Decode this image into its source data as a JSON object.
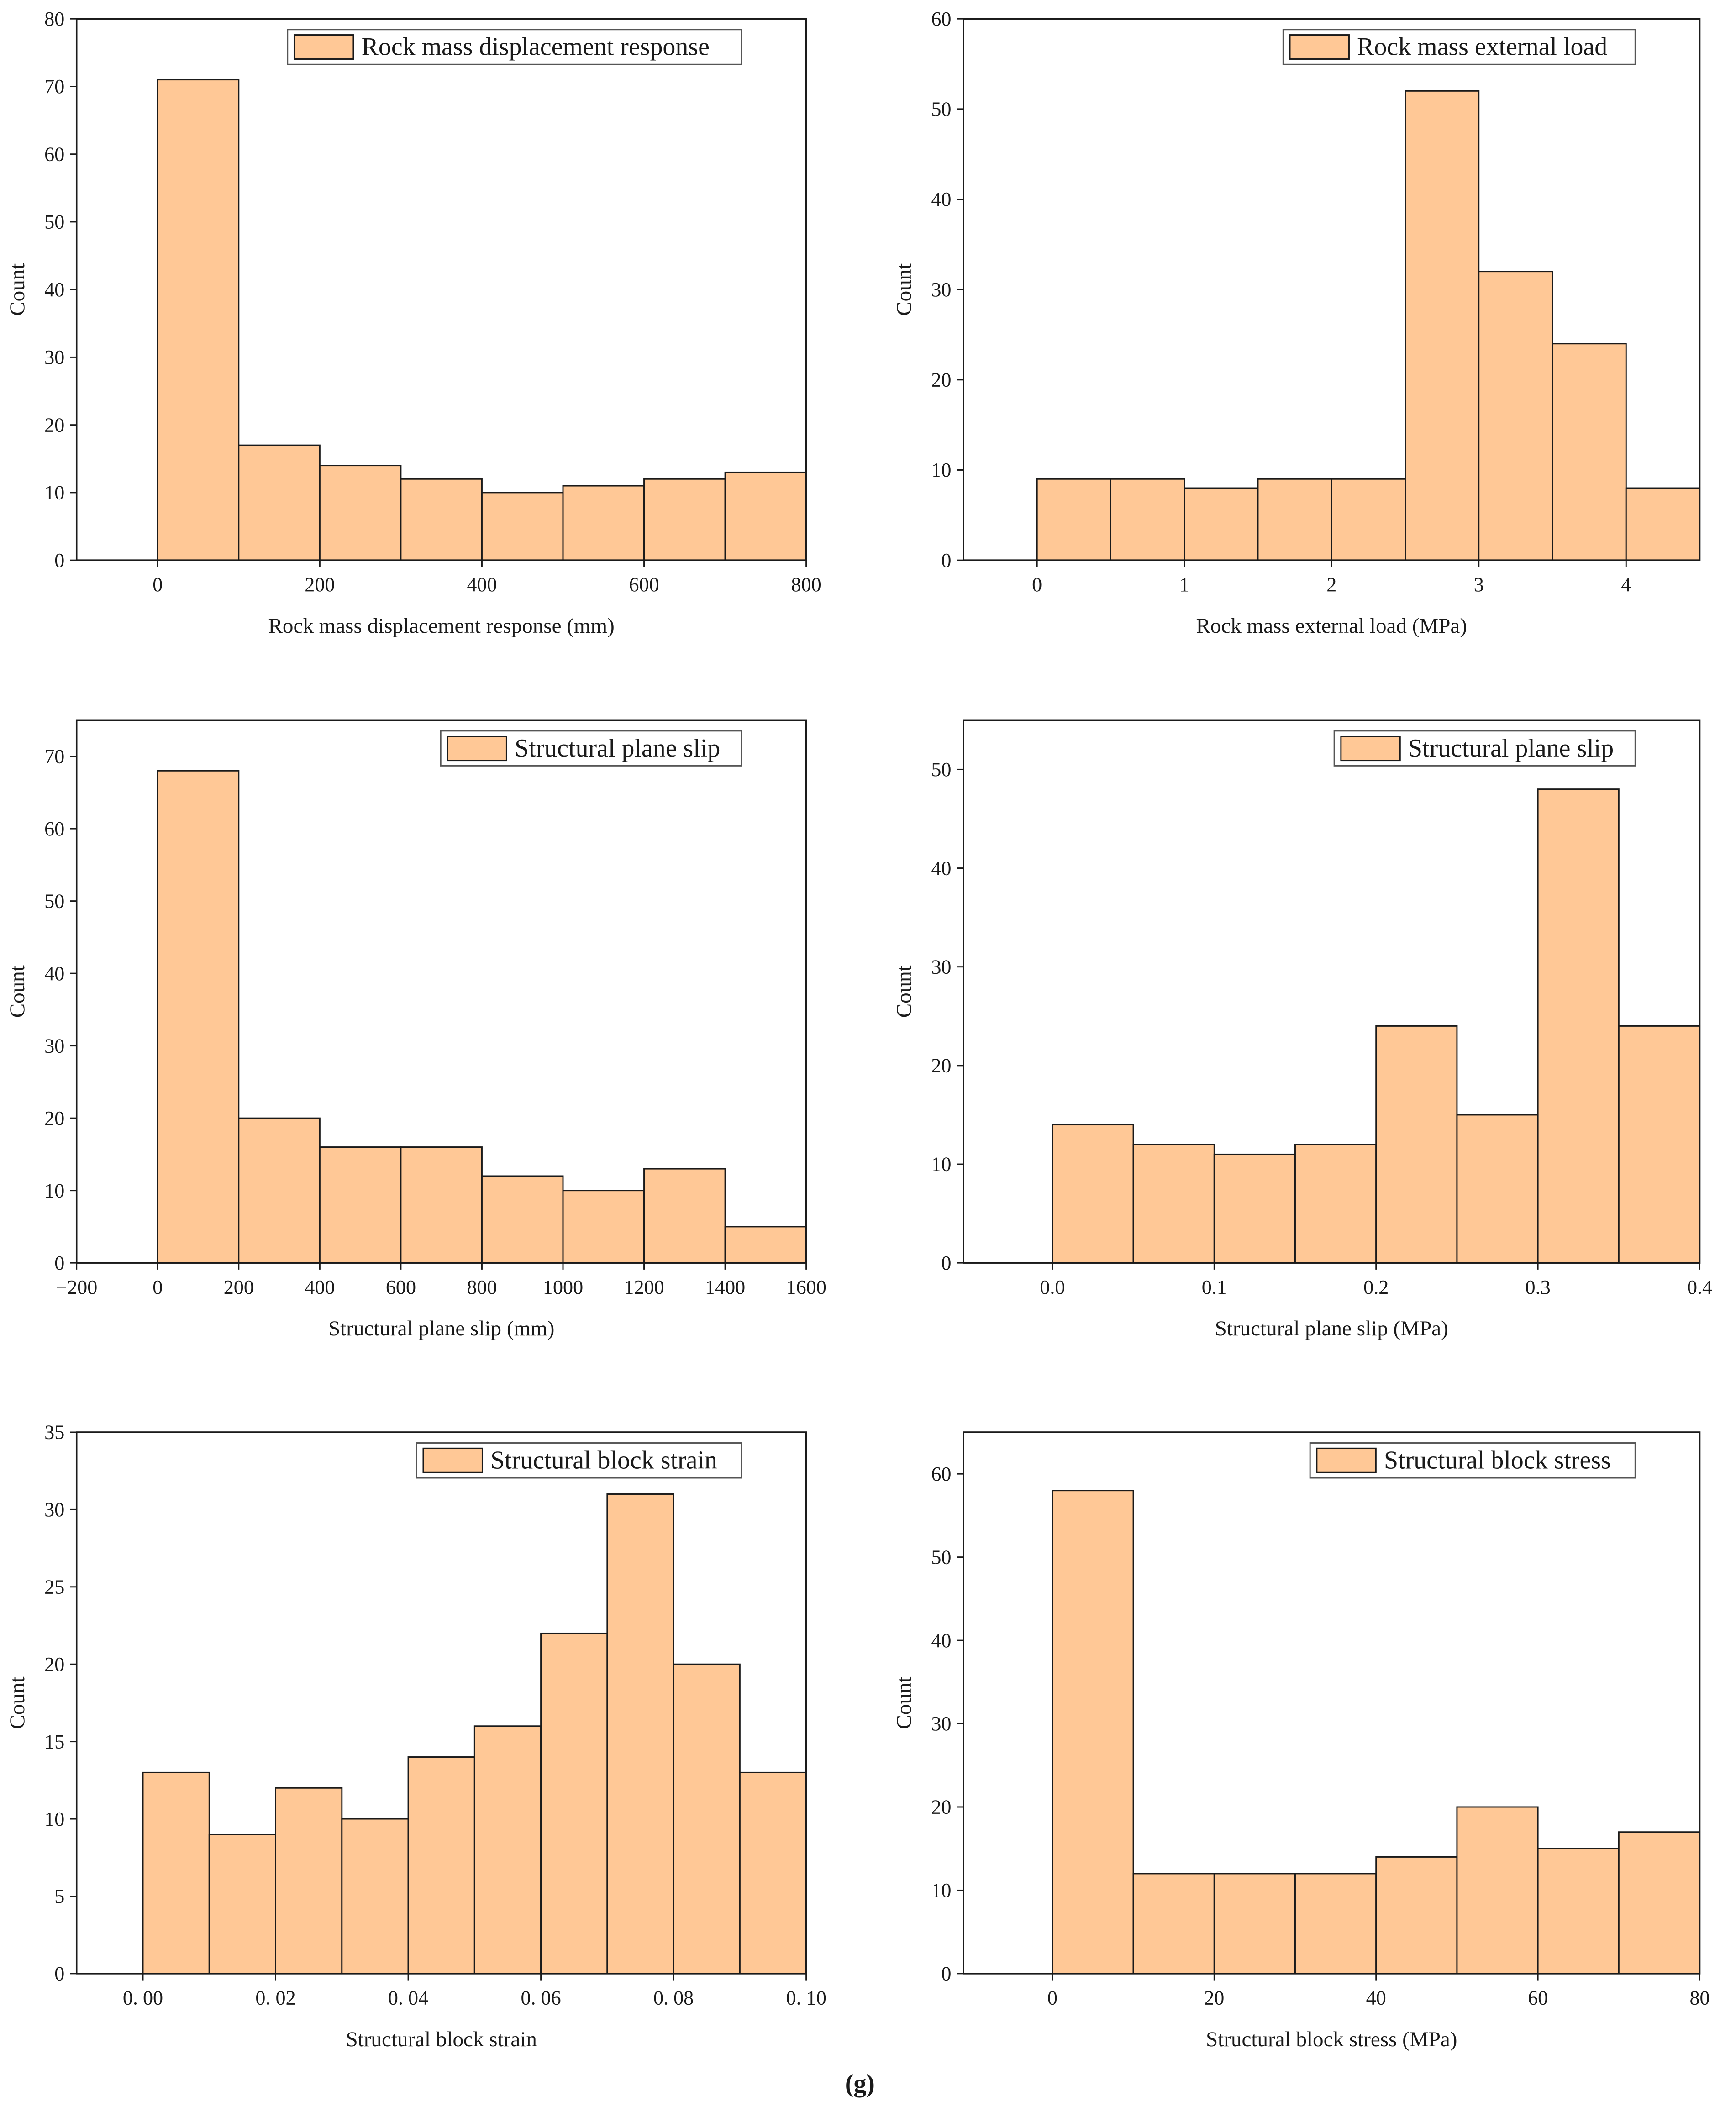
{
  "figure_label": "(g)",
  "chart_data": [
    {
      "type": "bar",
      "title": "",
      "legend": "Rock mass displacement response",
      "xlabel": "Rock mass displacement response (mm)",
      "ylabel": "Count",
      "xlim": [
        -100,
        800
      ],
      "ylim": [
        0,
        80
      ],
      "xticks": [
        0,
        200,
        400,
        600,
        800
      ],
      "xtick_labels": [
        "0",
        "200",
        "400",
        "600",
        "800"
      ],
      "yticks": [
        0,
        10,
        20,
        30,
        40,
        50,
        60,
        70,
        80
      ],
      "ytick_labels": [
        "0",
        "10",
        "20",
        "30",
        "40",
        "50",
        "60",
        "70",
        "80"
      ],
      "bin_edges": [
        0,
        100,
        200,
        300,
        400,
        500,
        600,
        700,
        800
      ],
      "values": [
        71,
        17,
        14,
        12,
        10,
        11,
        12,
        13
      ],
      "bar_color": "#ffc896",
      "legend_position": "top-right"
    },
    {
      "type": "bar",
      "title": "",
      "legend": "Rock mass external load",
      "xlabel": "Rock mass external load (MPa)",
      "ylabel": "Count",
      "xlim": [
        -0.5,
        4.5
      ],
      "ylim": [
        0,
        60
      ],
      "xticks": [
        0,
        1,
        2,
        3,
        4
      ],
      "xtick_labels": [
        "0",
        "1",
        "2",
        "3",
        "4"
      ],
      "yticks": [
        0,
        10,
        20,
        30,
        40,
        50,
        60
      ],
      "ytick_labels": [
        "0",
        "10",
        "20",
        "30",
        "40",
        "50",
        "60"
      ],
      "bin_edges": [
        0,
        0.5,
        1,
        1.5,
        2,
        2.5,
        3,
        3.5,
        4,
        4.5
      ],
      "values": [
        9,
        9,
        8,
        9,
        9,
        52,
        32,
        24,
        8
      ],
      "bar_color": "#ffc896",
      "legend_position": "top-right"
    },
    {
      "type": "bar",
      "title": "",
      "legend": "Structural plane slip",
      "xlabel": "Structural plane slip (mm)",
      "ylabel": "Count",
      "xlim": [
        -200,
        1600
      ],
      "ylim": [
        0,
        75
      ],
      "xticks": [
        -200,
        0,
        200,
        400,
        600,
        800,
        1000,
        1200,
        1400,
        1600
      ],
      "xtick_labels": [
        "−200",
        "0",
        "200",
        "400",
        "600",
        "800",
        "1000",
        "1200",
        "1400",
        "1600"
      ],
      "yticks": [
        0,
        10,
        20,
        30,
        40,
        50,
        60,
        70
      ],
      "ytick_labels": [
        "0",
        "10",
        "20",
        "30",
        "40",
        "50",
        "60",
        "70"
      ],
      "bin_edges": [
        0,
        200,
        400,
        600,
        800,
        1000,
        1200,
        1400,
        1600
      ],
      "values": [
        68,
        20,
        16,
        16,
        12,
        10,
        13,
        5
      ],
      "bar_color": "#ffc896",
      "legend_position": "top-right"
    },
    {
      "type": "bar",
      "title": "",
      "legend": "Structural plane slip",
      "xlabel": "Structural plane slip (MPa)",
      "ylabel": "Count",
      "xlim": [
        -0.055,
        0.4
      ],
      "ylim": [
        0,
        55
      ],
      "xticks": [
        0.0,
        0.1,
        0.2,
        0.3,
        0.4
      ],
      "xtick_labels": [
        "0.0",
        "0.1",
        "0.2",
        "0.3",
        "0.4"
      ],
      "yticks": [
        0,
        10,
        20,
        30,
        40,
        50
      ],
      "ytick_labels": [
        "0",
        "10",
        "20",
        "30",
        "40",
        "50"
      ],
      "bin_edges": [
        0,
        0.05,
        0.1,
        0.15,
        0.2,
        0.25,
        0.3,
        0.35,
        0.4
      ],
      "values": [
        14,
        12,
        11,
        12,
        24,
        15,
        48,
        24
      ],
      "bar_color": "#ffc896",
      "legend_position": "top-right"
    },
    {
      "type": "bar",
      "title": "",
      "legend": "Structural block strain",
      "xlabel": "Structural block strain",
      "ylabel": "Count",
      "xlim": [
        -0.01,
        0.1
      ],
      "ylim": [
        0,
        35
      ],
      "xticks": [
        0.0,
        0.02,
        0.04,
        0.06,
        0.08,
        0.1
      ],
      "xtick_labels": [
        "0. 00",
        "0. 02",
        "0. 04",
        "0. 06",
        "0. 08",
        "0. 10"
      ],
      "yticks": [
        0,
        5,
        10,
        15,
        20,
        25,
        30,
        35
      ],
      "ytick_labels": [
        "0",
        "5",
        "10",
        "15",
        "20",
        "25",
        "30",
        "35"
      ],
      "bin_edges": [
        0,
        0.01,
        0.02,
        0.03,
        0.04,
        0.05,
        0.06,
        0.07,
        0.08,
        0.09,
        0.1
      ],
      "values": [
        13,
        9,
        12,
        10,
        14,
        16,
        22,
        31,
        20,
        13
      ],
      "bar_color": "#ffc896",
      "legend_position": "top-right"
    },
    {
      "type": "bar",
      "title": "",
      "legend": "Structural block stress",
      "xlabel": "Structural block stress (MPa)",
      "ylabel": "Count",
      "xlim": [
        -11,
        80
      ],
      "ylim": [
        0,
        65
      ],
      "xticks": [
        0,
        20,
        40,
        60,
        80
      ],
      "xtick_labels": [
        "0",
        "20",
        "40",
        "60",
        "80"
      ],
      "yticks": [
        0,
        10,
        20,
        30,
        40,
        50,
        60
      ],
      "ytick_labels": [
        "0",
        "10",
        "20",
        "30",
        "40",
        "50",
        "60"
      ],
      "bin_edges": [
        0,
        10,
        20,
        30,
        40,
        50,
        60,
        70,
        80
      ],
      "values": [
        58,
        12,
        12,
        12,
        14,
        20,
        15,
        17
      ],
      "bar_color": "#ffc896",
      "legend_position": "top-right"
    }
  ]
}
